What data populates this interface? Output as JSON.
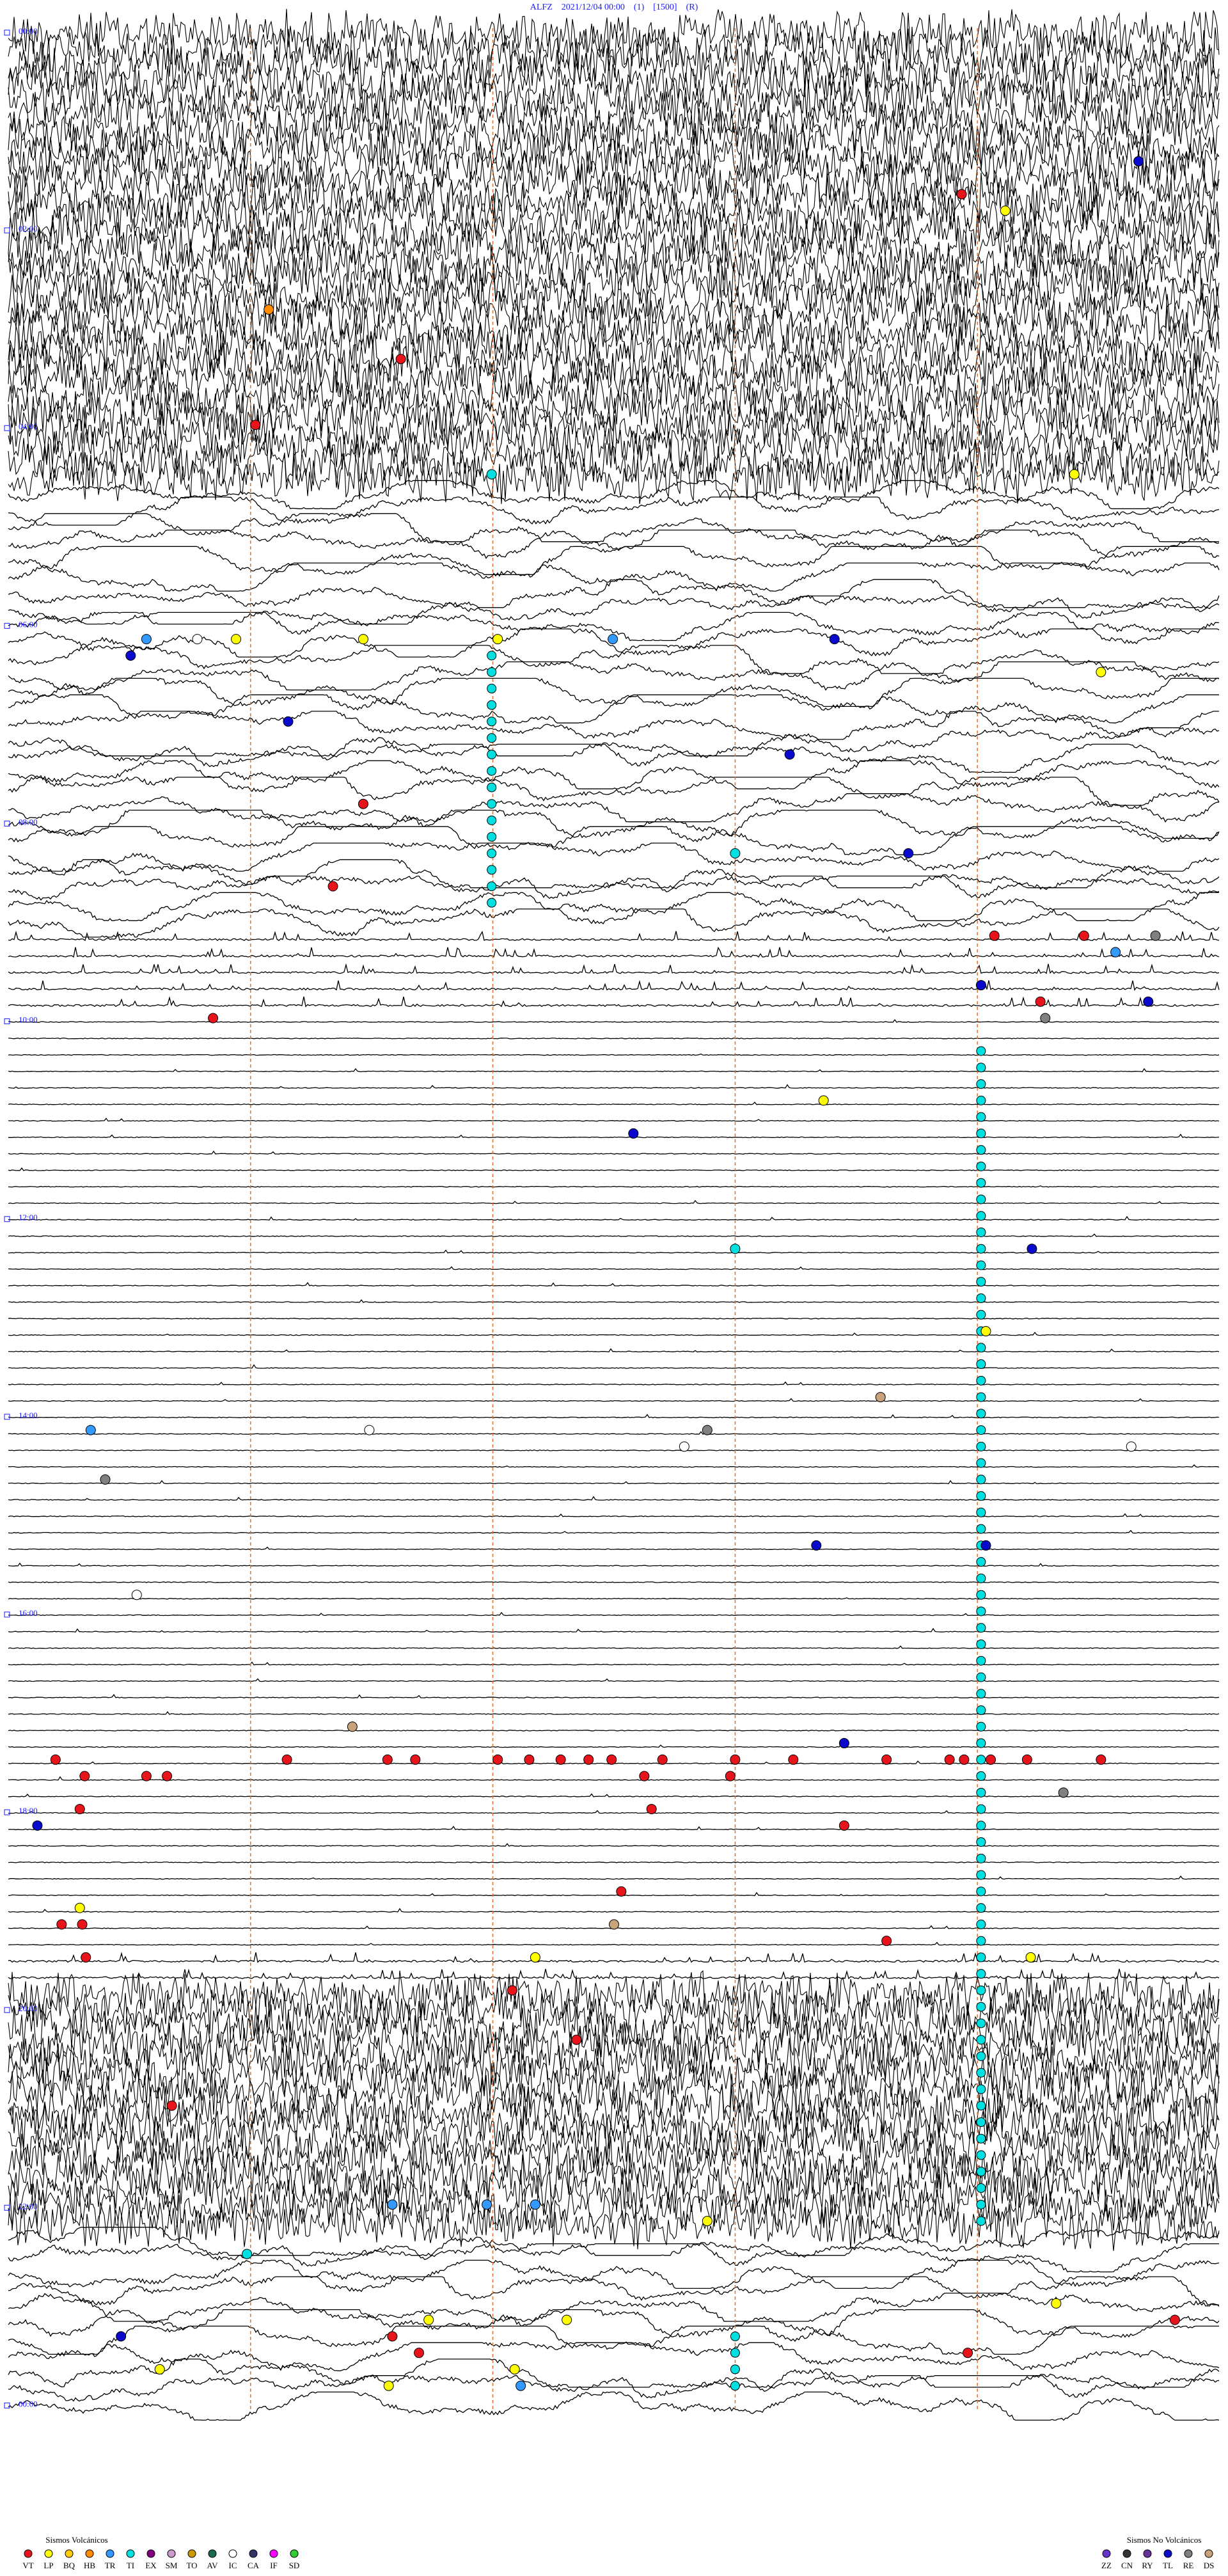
{
  "header": {
    "title": "ALFZ    2021/12/04 00:00    (1)    [1500]    (R)"
  },
  "xlim": [
    0,
    10
  ],
  "gridlines": [
    2,
    4,
    6,
    8
  ],
  "time_labels": [
    {
      "row": 0,
      "text": "00:00"
    },
    {
      "row": 12,
      "text": "02:00"
    },
    {
      "row": 24,
      "text": "04:00"
    },
    {
      "row": 36,
      "text": "06:00"
    },
    {
      "row": 48,
      "text": "08:00"
    },
    {
      "row": 60,
      "text": "10:00"
    },
    {
      "row": 72,
      "text": "12:00"
    },
    {
      "row": 84,
      "text": "14:00"
    },
    {
      "row": 96,
      "text": "16:00"
    },
    {
      "row": 108,
      "text": "18:00"
    },
    {
      "row": 120,
      "text": "20:00"
    },
    {
      "row": 132,
      "text": "22:00"
    },
    {
      "row": 144,
      "text": "00:00"
    }
  ],
  "trace_levels": [
    3,
    3,
    3,
    3,
    3,
    3,
    3,
    3,
    3,
    3,
    3,
    3,
    3,
    3,
    3,
    3,
    3,
    3,
    3,
    3,
    3,
    3,
    3,
    3,
    3,
    3,
    3,
    3,
    2,
    2,
    2,
    2,
    2,
    2,
    2,
    2,
    2,
    2,
    2,
    2,
    2,
    2,
    2,
    2,
    2,
    2,
    2,
    2,
    2,
    2,
    2,
    2,
    2,
    2,
    2,
    1,
    1,
    1,
    1,
    1,
    0,
    0,
    0,
    0,
    0,
    0,
    0,
    0,
    0,
    0,
    0,
    0,
    0,
    0,
    0,
    0,
    0,
    0,
    0,
    0,
    0,
    0,
    0,
    0,
    0,
    0,
    0,
    0,
    0,
    0,
    0,
    0,
    0,
    0,
    0,
    0,
    0,
    0,
    0,
    0,
    0,
    0,
    0,
    0,
    0,
    0,
    0,
    0,
    0,
    0,
    0,
    0,
    0,
    0,
    0,
    0,
    0,
    1,
    1,
    3,
    3,
    3,
    3,
    3,
    3,
    3,
    3,
    3,
    3,
    3,
    3,
    3,
    3,
    3,
    2,
    2,
    2,
    2,
    2,
    2,
    2,
    2,
    2,
    2,
    2
  ],
  "ti_runs": [
    {
      "code": "TI",
      "minute": 3.99,
      "rows": [
        38,
        53
      ]
    },
    {
      "code": "TI",
      "minute": 8.03,
      "rows": [
        62,
        133
      ]
    },
    {
      "code": "TI",
      "minute": 6.0,
      "rows": [
        140,
        143
      ]
    }
  ],
  "events": [
    [
      "TL",
      8,
      9.33
    ],
    [
      "VT",
      10,
      7.87
    ],
    [
      "LP",
      11,
      8.23
    ],
    [
      "HB",
      17,
      2.15
    ],
    [
      "VT",
      20,
      3.24
    ],
    [
      "VT",
      24,
      2.04
    ],
    [
      "TI",
      27,
      3.99
    ],
    [
      "LP",
      27,
      8.8
    ],
    [
      "IC",
      37,
      1.56
    ],
    [
      "LP",
      37,
      1.88
    ],
    [
      "LP",
      37,
      2.93
    ],
    [
      "LP",
      37,
      4.04
    ],
    [
      "TR",
      37,
      4.99
    ],
    [
      "TL",
      37,
      6.82
    ],
    [
      "TR",
      37,
      1.14
    ],
    [
      "TL",
      38,
      1.01
    ],
    [
      "LP",
      39,
      9.02
    ],
    [
      "TL",
      42,
      2.31
    ],
    [
      "TL",
      44,
      6.45
    ],
    [
      "VT",
      47,
      2.93
    ],
    [
      "TI",
      50,
      6.0
    ],
    [
      "TL",
      50,
      7.43
    ],
    [
      "VT",
      52,
      2.68
    ],
    [
      "VT",
      55,
      8.14
    ],
    [
      "VT",
      55,
      8.88
    ],
    [
      "TR",
      56,
      9.14
    ],
    [
      "RE",
      55,
      9.47
    ],
    [
      "TL",
      58,
      8.03
    ],
    [
      "VT",
      59,
      8.52
    ],
    [
      "RE",
      60,
      8.56
    ],
    [
      "TL",
      59,
      9.41
    ],
    [
      "VT",
      60,
      1.69
    ],
    [
      "LP",
      65,
      6.73
    ],
    [
      "TL",
      67,
      5.16
    ],
    [
      "TI",
      74,
      6.0
    ],
    [
      "TL",
      74,
      8.45
    ],
    [
      "LP",
      79,
      8.07
    ],
    [
      "DS",
      83,
      7.2
    ],
    [
      "TR",
      85,
      0.68
    ],
    [
      "IC",
      85,
      2.98
    ],
    [
      "RE",
      85,
      5.77
    ],
    [
      "IC",
      86,
      5.58
    ],
    [
      "IC",
      86,
      9.27
    ],
    [
      "RE",
      88,
      0.8
    ],
    [
      "TL",
      92,
      6.67
    ],
    [
      "TL",
      92,
      8.07
    ],
    [
      "IC",
      95,
      1.06
    ],
    [
      "DS",
      103,
      2.84
    ],
    [
      "TL",
      104,
      6.9
    ],
    [
      "VT",
      105,
      0.39
    ],
    [
      "VT",
      106,
      0.63
    ],
    [
      "VT",
      106,
      1.14
    ],
    [
      "VT",
      106,
      1.31
    ],
    [
      "VT",
      105,
      2.3
    ],
    [
      "VT",
      105,
      3.13
    ],
    [
      "VT",
      105,
      3.36
    ],
    [
      "VT",
      105,
      4.04
    ],
    [
      "VT",
      105,
      4.3
    ],
    [
      "VT",
      105,
      4.56
    ],
    [
      "VT",
      105,
      4.79
    ],
    [
      "VT",
      105,
      4.98
    ],
    [
      "VT",
      106,
      5.25
    ],
    [
      "VT",
      105,
      5.4
    ],
    [
      "VT",
      106,
      5.96
    ],
    [
      "VT",
      105,
      6.0
    ],
    [
      "VT",
      105,
      6.48
    ],
    [
      "VT",
      105,
      7.25
    ],
    [
      "VT",
      105,
      7.77
    ],
    [
      "VT",
      105,
      7.89
    ],
    [
      "VT",
      105,
      8.11
    ],
    [
      "VT",
      105,
      8.41
    ],
    [
      "VT",
      105,
      9.02
    ],
    [
      "RE",
      107,
      8.71
    ],
    [
      "VT",
      108,
      5.31
    ],
    [
      "VT",
      108,
      0.59
    ],
    [
      "TL",
      109,
      0.24
    ],
    [
      "VT",
      109,
      6.9
    ],
    [
      "VT",
      113,
      5.06
    ],
    [
      "LP",
      114,
      0.59
    ],
    [
      "DS",
      115,
      5.0
    ],
    [
      "VT",
      115,
      0.44
    ],
    [
      "VT",
      115,
      0.61
    ],
    [
      "VT",
      116,
      7.25
    ],
    [
      "VT",
      117,
      0.64
    ],
    [
      "LP",
      117,
      4.35
    ],
    [
      "LP",
      117,
      8.44
    ],
    [
      "VT",
      119,
      4.16
    ],
    [
      "VT",
      122,
      4.69
    ],
    [
      "VT",
      126,
      1.35
    ],
    [
      "TR",
      132,
      3.17
    ],
    [
      "TR",
      132,
      3.95
    ],
    [
      "TR",
      132,
      4.35
    ],
    [
      "LP",
      133,
      5.77
    ],
    [
      "TI",
      135,
      1.97
    ],
    [
      "LP",
      138,
      8.65
    ],
    [
      "VT",
      139,
      9.63
    ],
    [
      "LP",
      139,
      4.61
    ],
    [
      "LP",
      139,
      3.47
    ],
    [
      "TL",
      140,
      0.93
    ],
    [
      "VT",
      140,
      3.17
    ],
    [
      "VT",
      141,
      3.39
    ],
    [
      "VT",
      141,
      7.92
    ],
    [
      "LP",
      142,
      1.25
    ],
    [
      "LP",
      143,
      3.14
    ],
    [
      "LP",
      142,
      4.18
    ],
    [
      "TR",
      143,
      4.23
    ]
  ],
  "legend": {
    "volcanic_title": "Sismos Volcánicos",
    "volcanic": [
      {
        "code": "VT",
        "color": "#e8141b"
      },
      {
        "code": "LP",
        "color": "#ffff00"
      },
      {
        "code": "BQ",
        "color": "#ffcc00"
      },
      {
        "code": "HB",
        "color": "#ff8c00"
      },
      {
        "code": "TR",
        "color": "#3399ff"
      },
      {
        "code": "TI",
        "color": "#00e0e0"
      },
      {
        "code": "EX",
        "color": "#800080"
      },
      {
        "code": "SM",
        "color": "#cc99cc"
      },
      {
        "code": "TO",
        "color": "#cc9900"
      },
      {
        "code": "AV",
        "color": "#1a6b4a"
      },
      {
        "code": "IC",
        "color": "#ffffff"
      },
      {
        "code": "CA",
        "color": "#333366"
      },
      {
        "code": "IF",
        "color": "#ff00ff"
      },
      {
        "code": "SD",
        "color": "#33cc33"
      }
    ],
    "nonvolcanic_title": "Sismos No Volcánicos",
    "nonvolcanic": [
      {
        "code": "ZZ",
        "color": "#6633cc"
      },
      {
        "code": "CN",
        "color": "#333333"
      },
      {
        "code": "RY",
        "color": "#663399"
      },
      {
        "code": "TL",
        "color": "#0a0acc"
      },
      {
        "code": "RE",
        "color": "#808080"
      },
      {
        "code": "DS",
        "color": "#c8a27a"
      }
    ]
  }
}
